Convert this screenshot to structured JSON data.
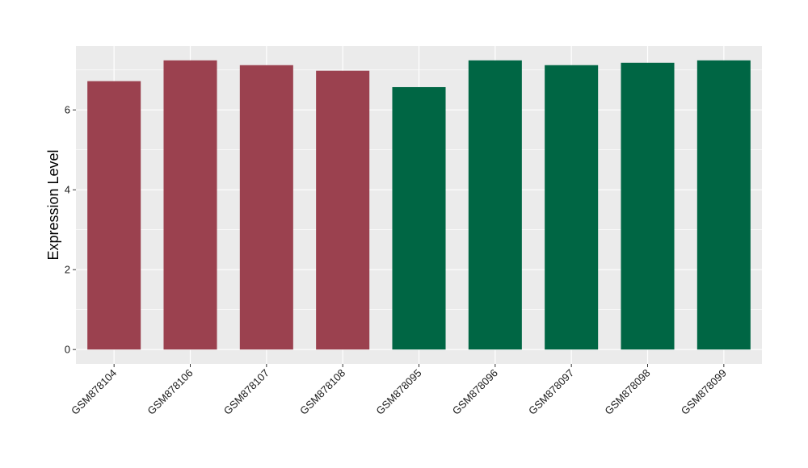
{
  "chart_data": {
    "type": "bar",
    "title": "",
    "xlabel": "",
    "ylabel": "Expression Level",
    "categories": [
      "GSM878104",
      "GSM878106",
      "GSM878107",
      "GSM878108",
      "GSM878095",
      "GSM878096",
      "GSM878097",
      "GSM878098",
      "GSM878099"
    ],
    "values": [
      6.72,
      7.24,
      7.12,
      6.98,
      6.57,
      7.24,
      7.12,
      7.18,
      7.24
    ],
    "bar_colors": [
      "#9b414f",
      "#9b414f",
      "#9b414f",
      "#9b414f",
      "#006644",
      "#006644",
      "#006644",
      "#006644",
      "#006644"
    ],
    "ylim": [
      -0.36,
      7.6
    ],
    "yticks": [
      0,
      2,
      4,
      6
    ],
    "grid": true,
    "panel_background": "#ebebeb",
    "gridline_color": "#ffffff"
  }
}
